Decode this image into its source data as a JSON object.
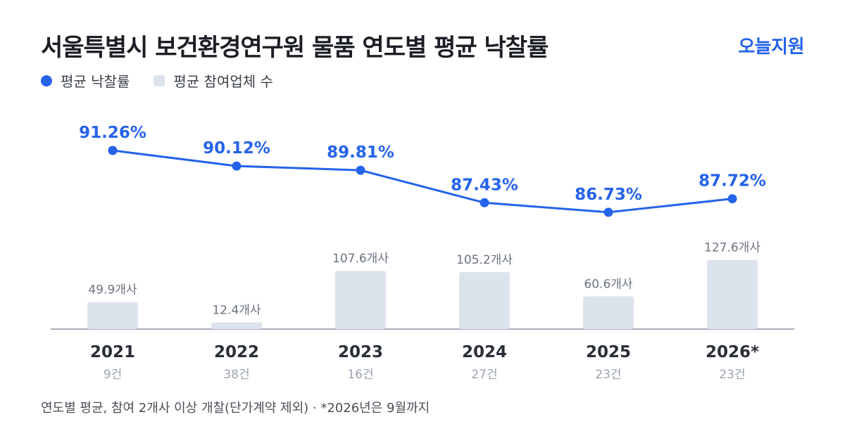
{
  "header": {
    "title": "서울특별시 보건환경연구원 물품 연도별 평균 낙찰률",
    "brand": "오늘지원"
  },
  "legend": {
    "rate_label": "평균 낙찰률",
    "bidders_label": "평균 참여업체 수"
  },
  "footnote": "연도별 평균, 참여 2개사 이상 개찰(단가계약 제외) · *2026년은 9월까지",
  "colors": {
    "line": "#2563eb",
    "bar": "#dde3ec",
    "axis": "#8a93a0",
    "year_label": "#2a2f37",
    "count_label": "#9aa3ae",
    "bar_label": "#6b7280"
  },
  "chart_data": {
    "type": "bar+line",
    "categories": [
      "2021",
      "2022",
      "2023",
      "2024",
      "2025",
      "2026*"
    ],
    "counts": [
      "9건",
      "38건",
      "16건",
      "27건",
      "23건",
      "23건"
    ],
    "series": [
      {
        "name": "평균 낙찰률",
        "type": "line",
        "values": [
          91.26,
          90.12,
          89.81,
          87.43,
          86.73,
          87.72
        ],
        "labels": [
          "91.26%",
          "90.12%",
          "89.81%",
          "87.43%",
          "86.73%",
          "87.72%"
        ]
      },
      {
        "name": "평균 참여업체 수",
        "type": "bar",
        "values": [
          49.9,
          12.4,
          107.6,
          105.2,
          60.6,
          127.6
        ],
        "labels": [
          "49.9개사",
          "12.4개사",
          "107.6개사",
          "105.2개사",
          "60.6개사",
          "127.6개사"
        ]
      }
    ],
    "legend_position": "top-left",
    "grid": false
  }
}
